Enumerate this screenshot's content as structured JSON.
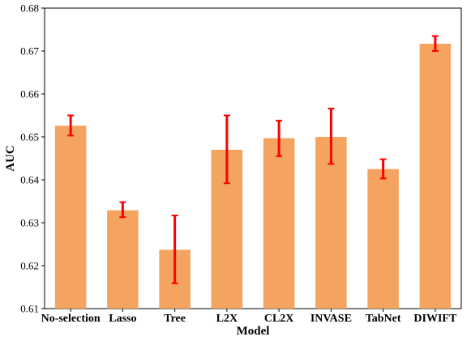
{
  "chart_data": {
    "type": "bar",
    "title": "",
    "xlabel": "Model",
    "ylabel": "AUC",
    "categories": [
      "No-selection",
      "Lasso",
      "Tree",
      "L2X",
      "CL2X",
      "INVASE",
      "TabNet",
      "DIWIFT"
    ],
    "values": [
      0.6526,
      0.6329,
      0.6237,
      0.647,
      0.6497,
      0.65,
      0.6425,
      0.6717
    ],
    "error_low": [
      0.6503,
      0.6313,
      0.6159,
      0.6392,
      0.6455,
      0.6437,
      0.6403,
      0.67
    ],
    "error_high": [
      0.655,
      0.6348,
      0.6317,
      0.655,
      0.6538,
      0.6566,
      0.6448,
      0.6735
    ],
    "ylim": [
      0.61,
      0.68
    ],
    "yticks": [
      0.61,
      0.62,
      0.63,
      0.64,
      0.65,
      0.66,
      0.67,
      0.68
    ],
    "ytick_labels": [
      "0.61",
      "0.62",
      "0.63",
      "0.64",
      "0.65",
      "0.66",
      "0.67",
      "0.68"
    ],
    "grid": false,
    "legend": "none",
    "bar_color": "#f4a460",
    "error_color": "#ff0000"
  }
}
